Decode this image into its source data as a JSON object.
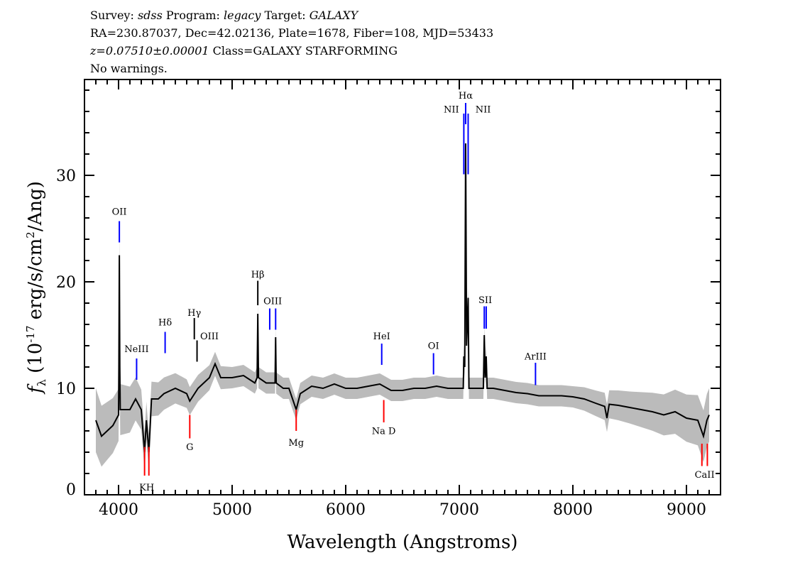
{
  "header": {
    "line1": {
      "p1": "Survey: ",
      "survey": "sdss",
      "p2": " Program: ",
      "program": "legacy",
      "p3": " Target: ",
      "target": "GALAXY"
    },
    "line2": "RA=230.87037, Dec=42.02136, Plate=1678, Fiber=108, MJD=53433",
    "line3": {
      "z": "z=0.07510±0.00001",
      "cls": " Class=GALAXY STARFORMING"
    },
    "line4": "No warnings."
  },
  "chart_data": {
    "type": "line",
    "xlabel": "Wavelength (Angstroms)",
    "ylabel": "f_λ (10^-17 erg/s/cm^2/Ang)",
    "xlim": [
      3700,
      9300
    ],
    "ylim": [
      0,
      39
    ],
    "xticks": [
      4000,
      5000,
      6000,
      7000,
      8000,
      9000
    ],
    "yticks": [
      0,
      10,
      20,
      30
    ],
    "colors": {
      "flux": "#000000",
      "error_band": "#bbbbbb",
      "emission": "#0000ff",
      "absorption": "#ff0000",
      "other": "#000000"
    },
    "flux": [
      [
        3800,
        7
      ],
      [
        3850,
        5.5
      ],
      [
        3900,
        6
      ],
      [
        3950,
        6.5
      ],
      [
        4000,
        7.5
      ],
      [
        4003,
        12
      ],
      [
        4007,
        22.5
      ],
      [
        4011,
        12
      ],
      [
        4015,
        8
      ],
      [
        4100,
        8
      ],
      [
        4150,
        9
      ],
      [
        4200,
        8
      ],
      [
        4229,
        4
      ],
      [
        4245,
        7
      ],
      [
        4267,
        4
      ],
      [
        4290,
        9
      ],
      [
        4350,
        9
      ],
      [
        4400,
        9.5
      ],
      [
        4500,
        10
      ],
      [
        4600,
        9.5
      ],
      [
        4627,
        8.8
      ],
      [
        4700,
        10
      ],
      [
        4750,
        10.5
      ],
      [
        4800,
        11
      ],
      [
        4850,
        12.3
      ],
      [
        4900,
        11
      ],
      [
        5000,
        11
      ],
      [
        5100,
        11.2
      ],
      [
        5200,
        10.5
      ],
      [
        5220,
        11
      ],
      [
        5226,
        17
      ],
      [
        5232,
        11
      ],
      [
        5300,
        10.5
      ],
      [
        5378,
        10.5
      ],
      [
        5383,
        14.8
      ],
      [
        5388,
        10.5
      ],
      [
        5450,
        10
      ],
      [
        5500,
        10
      ],
      [
        5564,
        8
      ],
      [
        5600,
        9.5
      ],
      [
        5700,
        10.2
      ],
      [
        5800,
        10
      ],
      [
        5900,
        10.4
      ],
      [
        6000,
        10
      ],
      [
        6100,
        10
      ],
      [
        6200,
        10.2
      ],
      [
        6300,
        10.4
      ],
      [
        6400,
        9.8
      ],
      [
        6500,
        9.8
      ],
      [
        6600,
        10
      ],
      [
        6700,
        10
      ],
      [
        6800,
        10.2
      ],
      [
        6900,
        10
      ],
      [
        7000,
        10
      ],
      [
        7035,
        10
      ],
      [
        7040,
        13
      ],
      [
        7048,
        12
      ],
      [
        7056,
        33
      ],
      [
        7064,
        14
      ],
      [
        7078,
        18.5
      ],
      [
        7085,
        10
      ],
      [
        7150,
        10
      ],
      [
        7212,
        10
      ],
      [
        7220,
        15
      ],
      [
        7228,
        11
      ],
      [
        7237,
        13
      ],
      [
        7245,
        10
      ],
      [
        7300,
        10
      ],
      [
        7400,
        9.8
      ],
      [
        7500,
        9.6
      ],
      [
        7600,
        9.5
      ],
      [
        7700,
        9.3
      ],
      [
        7800,
        9.3
      ],
      [
        7900,
        9.3
      ],
      [
        8000,
        9.2
      ],
      [
        8100,
        9
      ],
      [
        8200,
        8.6
      ],
      [
        8280,
        8.3
      ],
      [
        8300,
        7.2
      ],
      [
        8320,
        8.5
      ],
      [
        8400,
        8.4
      ],
      [
        8500,
        8.2
      ],
      [
        8600,
        8
      ],
      [
        8700,
        7.8
      ],
      [
        8800,
        7.5
      ],
      [
        8900,
        7.8
      ],
      [
        9000,
        7.2
      ],
      [
        9100,
        7
      ],
      [
        9150,
        5.5
      ],
      [
        9180,
        7
      ],
      [
        9200,
        7.5
      ]
    ],
    "error": [
      [
        3800,
        3
      ],
      [
        4300,
        1.6
      ],
      [
        5000,
        1
      ],
      [
        8000,
        1
      ],
      [
        8500,
        1.5
      ],
      [
        9200,
        2.5
      ]
    ],
    "lines": [
      {
        "label": "OII",
        "wave": 4007,
        "y": [
          23.7,
          25.7
        ],
        "ly": 26.3,
        "kind": "emission"
      },
      {
        "label": "NeIII",
        "wave": 4159,
        "y": [
          10.8,
          12.8
        ],
        "ly": 13.4,
        "kind": "emission"
      },
      {
        "label": "KH",
        "wave": 4229,
        "wave2": 4267,
        "y": [
          1.8,
          4.5
        ],
        "ly": 0.4,
        "kind": "absorption"
      },
      {
        "label": "Hδ",
        "wave": 4410,
        "y": [
          13.3,
          15.3
        ],
        "ly": 15.9,
        "kind": "emission"
      },
      {
        "label": "G",
        "wave": 4627,
        "y": [
          5.3,
          7.5
        ],
        "ly": 4.2,
        "kind": "absorption"
      },
      {
        "label": "Hγ",
        "wave": 4667,
        "y": [
          14.6,
          16.6
        ],
        "ly": 16.8,
        "kind": "other"
      },
      {
        "label": "OIII",
        "wave": 4691,
        "wave_label": 4800,
        "y": [
          12.5,
          14.5
        ],
        "ly": 14.6,
        "kind": "other"
      },
      {
        "label": "Hβ",
        "wave": 5226,
        "y": [
          17.8,
          20.1
        ],
        "ly": 20.4,
        "kind": "other"
      },
      {
        "label": "OIII",
        "wave": 5331,
        "wave2": 5383,
        "y": [
          15.5,
          17.5
        ],
        "ly": 17.9,
        "kind": "emission"
      },
      {
        "label": "Mg",
        "wave": 5564,
        "y": [
          6,
          8
        ],
        "ly": 4.6,
        "kind": "absorption"
      },
      {
        "label": "HeI",
        "wave": 6317,
        "y": [
          12.2,
          14.2
        ],
        "ly": 14.6,
        "kind": "emission"
      },
      {
        "label": "Na D",
        "wave": 6335,
        "y": [
          6.8,
          8.9
        ],
        "ly": 5.7,
        "kind": "absorption"
      },
      {
        "label": "OI",
        "wave": 6773,
        "y": [
          11.3,
          13.3
        ],
        "ly": 13.7,
        "kind": "emission"
      },
      {
        "label": "NII",
        "wave": 7040,
        "wave_label": 6930,
        "y": [
          30.1,
          35.8
        ],
        "ly": 35.9,
        "kind": "emission"
      },
      {
        "label": "Hα",
        "wave": 7056,
        "y": [
          34.8,
          36.8
        ],
        "ly": 37.2,
        "kind": "emission"
      },
      {
        "label": "NII",
        "wave": 7078,
        "wave_label": 7210,
        "y": [
          30.1,
          35.8
        ],
        "ly": 35.9,
        "kind": "emission"
      },
      {
        "label": "SII",
        "wave": 7220,
        "wave2": 7237,
        "y": [
          15.6,
          17.7
        ],
        "ly": 18.0,
        "kind": "emission"
      },
      {
        "label": "ArIII",
        "wave": 7671,
        "y": [
          10.3,
          12.4
        ],
        "ly": 12.7,
        "kind": "emission"
      },
      {
        "label": "CaII",
        "wave": 9136,
        "wave2": 9184,
        "y": [
          2.7,
          4.8
        ],
        "ly": 1.6,
        "kind": "absorption"
      }
    ]
  }
}
